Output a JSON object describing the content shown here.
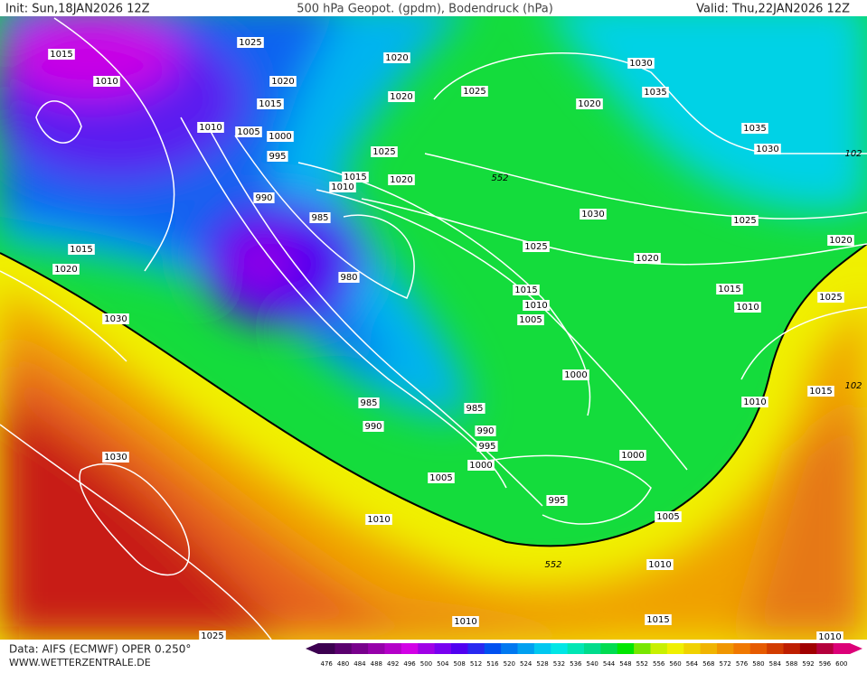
{
  "header": {
    "init": "Init: Sun,18JAN2026 12Z",
    "title": "500 hPa Geopot. (gpdm), Bodendruck (hPa)",
    "valid": "Valid: Thu,22JAN2026 12Z"
  },
  "isobar_labels": [
    1015,
    1025,
    1010,
    1020,
    1020,
    1030,
    1025,
    1020,
    1035,
    1015,
    1020,
    1010,
    1005,
    1000,
    1035,
    995,
    1025,
    1030,
    102,
    552,
    1015,
    1020,
    1010,
    990,
    985,
    1030,
    1025,
    1025,
    1020,
    1015,
    1020,
    1020,
    980,
    1015,
    1015,
    1025,
    1010,
    1010,
    1005,
    1030,
    1000,
    1015,
    102,
    985,
    1010,
    985,
    990,
    990,
    995,
    1030,
    1000,
    1000,
    1005,
    995,
    1010,
    1005,
    552,
    1010,
    1010,
    1015,
    1025,
    1010
  ],
  "colorbar": {
    "ticks": [
      476,
      480,
      484,
      488,
      492,
      496,
      500,
      504,
      508,
      512,
      516,
      520,
      524,
      528,
      532,
      536,
      540,
      544,
      548,
      552,
      556,
      560,
      564,
      568,
      572,
      576,
      580,
      584,
      588,
      592,
      596,
      600
    ],
    "colors": [
      "#3c0050",
      "#5a006e",
      "#78008c",
      "#9600aa",
      "#b400c8",
      "#d200e6",
      "#a000e6",
      "#7800f0",
      "#5000f0",
      "#2828f0",
      "#0050f0",
      "#0078f0",
      "#00a0f0",
      "#00c8f0",
      "#00e6e6",
      "#00e6b4",
      "#00dc8c",
      "#00dc50",
      "#00e600",
      "#78e600",
      "#c8f000",
      "#f0f000",
      "#f0d200",
      "#f0b400",
      "#f09600",
      "#f07800",
      "#e65a00",
      "#d23c00",
      "#be1e00",
      "#a00000",
      "#b4003c",
      "#dc0078"
    ]
  },
  "footer": {
    "source": "Data: AIFS (ECMWF) OPER 0.250°",
    "site": "WWW.WETTERZENTRALE.DE"
  }
}
